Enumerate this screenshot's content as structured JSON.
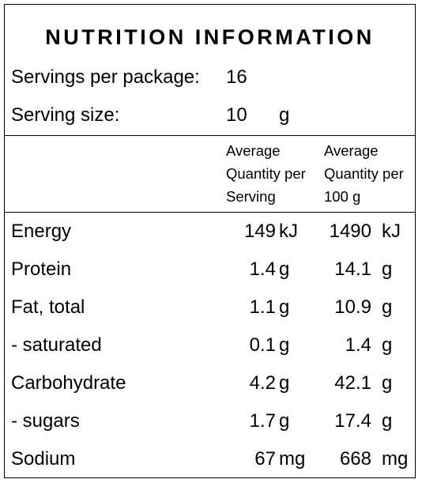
{
  "title": "NUTRITION INFORMATION",
  "servings": {
    "label": "Servings per package:",
    "value": "16"
  },
  "serving_size": {
    "label": "Serving size:",
    "value": "10",
    "unit": "g"
  },
  "headers": {
    "per_serving": [
      "Average",
      "Quantity per",
      "Serving"
    ],
    "per_100g": [
      "Average",
      "Quantity per",
      "100 g"
    ]
  },
  "rows": [
    {
      "label": "Energy",
      "serving": "149",
      "serving_unit": "kJ",
      "per100": "1490",
      "per100_unit": "kJ"
    },
    {
      "label": "Protein",
      "serving": "1.4",
      "serving_unit": "g",
      "per100": "14.1",
      "per100_unit": "g"
    },
    {
      "label": "Fat, total",
      "serving": "1.1",
      "serving_unit": "g",
      "per100": "10.9",
      "per100_unit": "g"
    },
    {
      "label": "- saturated",
      "serving": "0.1",
      "serving_unit": "g",
      "per100": "1.4",
      "per100_unit": "g"
    },
    {
      "label": "Carbohydrate",
      "serving": "4.2",
      "serving_unit": "g",
      "per100": "42.1",
      "per100_unit": "g"
    },
    {
      "label": "- sugars",
      "serving": "1.7",
      "serving_unit": "g",
      "per100": "17.4",
      "per100_unit": "g"
    },
    {
      "label": "Sodium",
      "serving": "67",
      "serving_unit": "mg",
      "per100": "668",
      "per100_unit": "mg"
    }
  ]
}
